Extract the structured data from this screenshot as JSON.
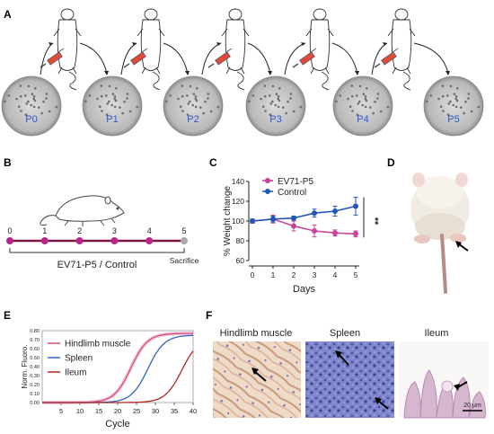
{
  "panel_letters": [
    "A",
    "B",
    "C",
    "D",
    "E",
    "F"
  ],
  "panel_a": {
    "passages": [
      "P0",
      "P1",
      "P2",
      "P3",
      "P4",
      "P5"
    ]
  },
  "panel_b": {
    "days": [
      "0",
      "1",
      "2",
      "3",
      "4",
      "5"
    ],
    "group_label": "EV71-P5 / Control",
    "end_label": "Sacrifice",
    "colors": {
      "line": "#7a1640",
      "dot": "#b5288a",
      "end_dot": "#a8a8a8"
    }
  },
  "chart_data": [
    {
      "type": "line",
      "panel": "C",
      "x": [
        0,
        1,
        2,
        3,
        4,
        5
      ],
      "xlabel": "Days",
      "ylabel": "% Weight change",
      "xlim": [
        0,
        5
      ],
      "ylim": [
        60,
        140
      ],
      "yticks": [
        60,
        80,
        100,
        120,
        140
      ],
      "xticks": [
        0,
        1,
        2,
        3,
        4,
        5
      ],
      "legend": "top-left",
      "significance": "**",
      "series": [
        {
          "name": "EV71-P5",
          "color": "#c9449a",
          "values": [
            100,
            102,
            95,
            90,
            88,
            87
          ],
          "errors": [
            2,
            4,
            5,
            6,
            3,
            3
          ]
        },
        {
          "name": "Control",
          "color": "#2456b8",
          "values": [
            100,
            102,
            103,
            108,
            110,
            115
          ],
          "errors": [
            2,
            3,
            2,
            4,
            5,
            9
          ]
        }
      ]
    },
    {
      "type": "line",
      "panel": "E",
      "x": [
        0,
        5,
        10,
        15,
        20,
        25,
        30,
        35,
        40
      ],
      "xlabel": "Cycle",
      "ylabel": "Norm. Fluoro.",
      "xlim": [
        0,
        40
      ],
      "ylim": [
        0,
        0.8
      ],
      "xticks": [
        5,
        10,
        15,
        20,
        25,
        30,
        35,
        40
      ],
      "yticks": [
        "0.00",
        "0.10",
        "0.20",
        "0.30",
        "0.40",
        "0.50",
        "0.60",
        "0.70",
        "0.80"
      ],
      "legend": "top-left",
      "series": [
        {
          "name": "Hindlimb muscle",
          "color": "#d94a86",
          "midpoint": 23.5,
          "plateau": 0.77
        },
        {
          "name": "Spleen",
          "color": "#2f66c2",
          "midpoint": 28,
          "plateau": 0.75
        },
        {
          "name": "Ileum",
          "color": "#b3261e",
          "midpoint": 37,
          "plateau": 0.72
        }
      ]
    }
  ],
  "panel_f": {
    "titles": [
      "Hindlimb muscle",
      "Spleen",
      "Ileum"
    ],
    "scale_bar": "20 μm"
  }
}
